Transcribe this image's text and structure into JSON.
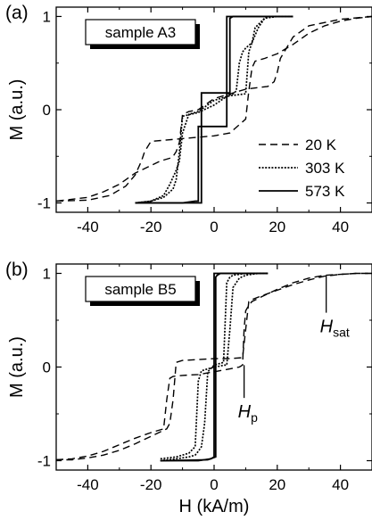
{
  "chart_data": [
    {
      "type": "line",
      "panel_label": "(a)",
      "sample_label": "sample A3",
      "ylabel": "M (a.u.)",
      "xlabel": "",
      "xlim": [
        -50,
        50
      ],
      "ylim": [
        -1.1,
        1.1
      ],
      "x_ticks": [
        -40,
        -20,
        0,
        20,
        40
      ],
      "y_ticks": [
        -1,
        0,
        1
      ],
      "legend_position": "right-middle",
      "series": [
        {
          "name": "20 K",
          "style": "dashed",
          "branches": [
            {
              "x": [
                -50,
                -40,
                -33,
                -28,
                -25,
                -23,
                -22,
                -20,
                -10,
                0,
                5,
                10,
                11,
                12,
                13,
                16,
                20,
                25,
                30,
                35,
                40,
                45,
                50
              ],
              "y": [
                -0.98,
                -0.97,
                -0.92,
                -0.82,
                -0.7,
                -0.55,
                -0.45,
                -0.34,
                -0.31,
                -0.28,
                -0.25,
                -0.1,
                0.2,
                0.45,
                0.52,
                0.55,
                0.6,
                0.7,
                0.82,
                0.9,
                0.95,
                0.98,
                1.0
              ]
            },
            {
              "x": [
                50,
                40,
                30,
                25,
                21,
                20,
                19,
                17,
                10,
                0,
                -5,
                -8,
                -10,
                -11,
                -12,
                -13,
                -14,
                -17,
                -25,
                -30,
                -35,
                -40,
                -50
              ],
              "y": [
                1.0,
                0.97,
                0.9,
                0.78,
                0.55,
                0.4,
                0.3,
                0.25,
                0.22,
                0.12,
                0.0,
                -0.02,
                -0.05,
                -0.35,
                -0.45,
                -0.5,
                -0.52,
                -0.55,
                -0.68,
                -0.8,
                -0.88,
                -0.94,
                -0.98
              ]
            }
          ]
        },
        {
          "name": "303 K",
          "style": "dotted",
          "branches": [
            {
              "x": [
                -25,
                -20,
                -16,
                -13,
                -12,
                -11,
                -10,
                -5,
                0,
                3,
                5,
                6,
                7,
                8,
                9,
                10,
                12,
                14,
                16,
                17,
                20,
                25
              ],
              "y": [
                -1.0,
                -0.98,
                -0.94,
                -0.85,
                -0.75,
                -0.45,
                -0.07,
                -0.03,
                0.05,
                0.12,
                0.16,
                0.17,
                0.2,
                0.5,
                0.62,
                0.66,
                0.72,
                0.88,
                0.98,
                1.0,
                1.0,
                1.0
              ]
            },
            {
              "x": [
                25,
                20,
                16,
                13,
                12,
                11,
                10,
                5,
                0,
                -5,
                -8,
                -10,
                -11,
                -12,
                -14,
                -16,
                -20,
                -25
              ],
              "y": [
                1.0,
                1.0,
                0.98,
                0.88,
                0.72,
                0.62,
                0.17,
                0.15,
                0.1,
                -0.02,
                -0.05,
                -0.25,
                -0.55,
                -0.65,
                -0.8,
                -0.92,
                -0.98,
                -1.0
              ]
            }
          ]
        },
        {
          "name": "573 K",
          "style": "solid",
          "branches": [
            {
              "x": [
                -25,
                -10,
                -6,
                -5,
                -5,
                0,
                4,
                4,
                6,
                25
              ],
              "y": [
                -1.0,
                -1.0,
                -0.98,
                -0.98,
                -0.18,
                -0.18,
                -0.18,
                1.0,
                1.0,
                1.0
              ]
            },
            {
              "x": [
                25,
                6,
                5,
                5,
                0,
                -4,
                -4,
                -10,
                -25
              ],
              "y": [
                1.0,
                1.0,
                0.98,
                0.18,
                0.18,
                0.18,
                -1.0,
                -1.0,
                -1.0
              ]
            }
          ]
        }
      ]
    },
    {
      "type": "line",
      "panel_label": "(b)",
      "sample_label": "sample B5",
      "ylabel": "M (a.u.)",
      "xlabel": "H (kA/m)",
      "xlim": [
        -50,
        50
      ],
      "ylim": [
        -1.1,
        1.1
      ],
      "x_ticks": [
        -40,
        -20,
        0,
        20,
        40
      ],
      "y_ticks": [
        -1,
        0,
        1
      ],
      "annotations": [
        {
          "text": "H",
          "sub": "p",
          "x": 9.5,
          "y_from": 0.02,
          "y_to": -0.33
        },
        {
          "text": "H",
          "sub": "sat",
          "x": 35.5,
          "y_from": 0.98,
          "y_to": 0.58
        }
      ],
      "series": [
        {
          "name": "20 K",
          "style": "dashed",
          "branches": [
            {
              "x": [
                -50,
                -45,
                -40,
                -35,
                -30,
                -25,
                -20,
                -16,
                -15,
                -14,
                -13,
                -10,
                -5,
                0,
                5,
                8,
                9,
                9.5,
                10,
                11,
                12,
                15,
                20,
                25,
                30,
                35,
                40,
                45,
                50
              ],
              "y": [
                -0.99,
                -0.98,
                -0.95,
                -0.9,
                -0.83,
                -0.76,
                -0.7,
                -0.66,
                -0.35,
                -0.12,
                -0.1,
                -0.09,
                -0.08,
                -0.05,
                -0.02,
                0.0,
                0.02,
                0.4,
                0.6,
                0.66,
                0.7,
                0.75,
                0.83,
                0.9,
                0.95,
                0.98,
                0.99,
                1.0,
                1.0
              ]
            },
            {
              "x": [
                50,
                45,
                40,
                35,
                30,
                25,
                20,
                15,
                12,
                11,
                10,
                9,
                5,
                0,
                -5,
                -10,
                -12,
                -13,
                -14,
                -15,
                -20,
                -25,
                -30,
                -35,
                -40,
                -45,
                -50
              ],
              "y": [
                1.0,
                1.0,
                0.99,
                0.97,
                0.93,
                0.88,
                0.82,
                0.76,
                0.72,
                0.7,
                0.4,
                0.1,
                0.09,
                0.09,
                0.08,
                0.07,
                0.05,
                -0.35,
                -0.6,
                -0.66,
                -0.74,
                -0.82,
                -0.89,
                -0.94,
                -0.97,
                -0.99,
                -0.99
              ]
            }
          ]
        },
        {
          "name": "303 K",
          "style": "dotted",
          "branches": [
            {
              "x": [
                -17,
                -12,
                -8,
                -6,
                -5,
                -4,
                -2,
                0,
                2,
                3,
                4,
                5,
                6,
                8,
                10,
                14,
                17
              ],
              "y": [
                -0.98,
                -0.96,
                -0.92,
                -0.85,
                -0.15,
                -0.04,
                -0.02,
                0.0,
                0.01,
                0.02,
                0.02,
                0.4,
                0.85,
                0.95,
                0.98,
                1.0,
                1.0
              ]
            },
            {
              "x": [
                17,
                10,
                6,
                5,
                4,
                3,
                0,
                -2,
                -3,
                -4,
                -5,
                -6,
                -8,
                -12,
                -17
              ],
              "y": [
                1.0,
                1.0,
                0.98,
                0.96,
                0.9,
                0.05,
                0.02,
                -0.05,
                -0.6,
                -0.85,
                -0.9,
                -0.94,
                -0.96,
                -0.98,
                -1.0
              ]
            }
          ]
        },
        {
          "name": "573 K",
          "style": "solid",
          "branches": [
            {
              "x": [
                -17,
                -5,
                -1,
                0,
                0,
                1,
                17
              ],
              "y": [
                -1.0,
                -1.0,
                -0.98,
                -0.96,
                1.0,
                1.0,
                1.0
              ]
            },
            {
              "x": [
                17,
                2,
                1,
                0.5,
                0.5,
                -2,
                -17
              ],
              "y": [
                1.0,
                1.0,
                0.98,
                0.96,
                -0.96,
                -0.99,
                -1.0
              ]
            }
          ]
        }
      ]
    }
  ]
}
